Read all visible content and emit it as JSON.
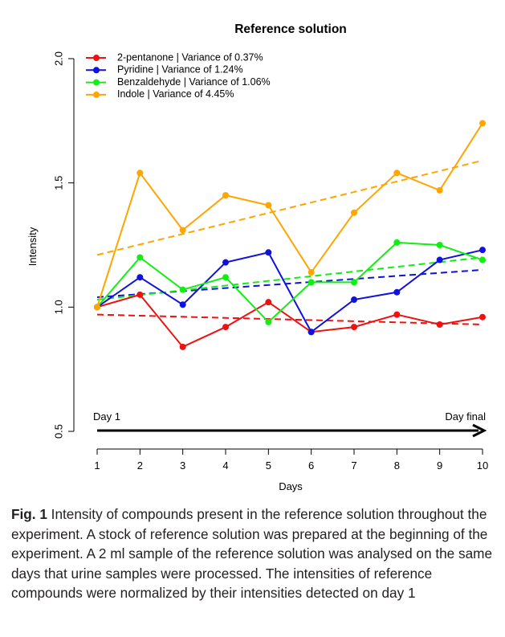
{
  "chart_data": {
    "type": "line",
    "title": "Reference solution",
    "xlabel": "Days",
    "ylabel": "Intensity",
    "x": [
      1,
      2,
      3,
      4,
      5,
      6,
      7,
      8,
      9,
      10
    ],
    "xlim": [
      1,
      10
    ],
    "ylim": [
      0.5,
      2.0
    ],
    "y_ticks": [
      "0.5",
      "1.0",
      "1.5",
      "2.0"
    ],
    "x_ticks": [
      "1",
      "2",
      "3",
      "4",
      "5",
      "6",
      "7",
      "8",
      "9",
      "10"
    ],
    "grid": false,
    "legend_position": "top-left",
    "series": [
      {
        "name": "2-pentanone | Variance of 0.37%",
        "color": "#ee1111",
        "values": [
          1.0,
          1.05,
          0.84,
          0.92,
          1.02,
          0.9,
          0.92,
          0.97,
          0.93,
          0.96
        ],
        "trend": [
          0.97,
          0.93
        ]
      },
      {
        "name": "Pyridine | Variance of 1.24%",
        "color": "#1111dd",
        "values": [
          1.0,
          1.12,
          1.01,
          1.18,
          1.22,
          0.9,
          1.03,
          1.06,
          1.19,
          1.23
        ],
        "trend": [
          1.04,
          1.15
        ]
      },
      {
        "name": "Benzaldehyde | Variance of 1.06%",
        "color": "#11ee11",
        "values": [
          1.0,
          1.2,
          1.07,
          1.12,
          0.94,
          1.1,
          1.1,
          1.26,
          1.25,
          1.19
        ],
        "trend": [
          1.03,
          1.2
        ]
      },
      {
        "name": "Indole | Variance of 4.45%",
        "color": "#ffa500",
        "values": [
          1.0,
          1.54,
          1.31,
          1.45,
          1.41,
          1.14,
          1.38,
          1.54,
          1.47,
          1.74
        ],
        "trend": [
          1.21,
          1.59
        ]
      }
    ],
    "arrow": {
      "start_label": "Day 1",
      "end_label": "Day final"
    }
  },
  "caption": {
    "label": "Fig. 1",
    "text": "Intensity of compounds present in the reference solution throughout the experiment. A stock of reference solution was prepared at the beginning of the experiment. A 2 ml sample of the reference solution was analysed on the same days that urine samples were processed. The intensities of reference compounds were normalized by their intensities detected on day 1"
  }
}
